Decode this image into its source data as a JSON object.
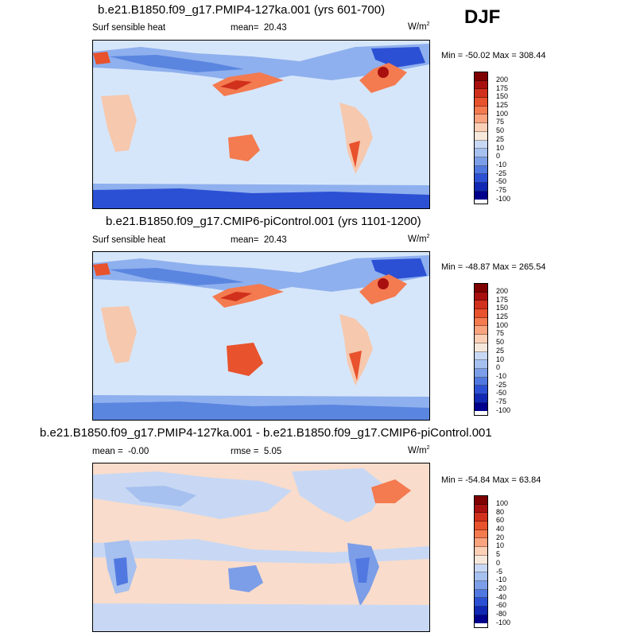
{
  "season": "DJF",
  "panels": [
    {
      "title": "b.e21.B1850.f09_g17.PMIP4-127ka.001 (yrs 601-700)",
      "variable": "Surf sensible heat",
      "mean_label": "mean=",
      "mean": "20.43",
      "units": "W/m",
      "units_exp": "2",
      "minmax": "Min = -50.02 Max = 308.44",
      "colorbar_levels": [
        "200",
        "175",
        "150",
        "125",
        "100",
        "75",
        "50",
        "25",
        "10",
        "0",
        "-10",
        "-25",
        "-50",
        "-75",
        "-100"
      ]
    },
    {
      "title": "b.e21.B1850.f09_g17.CMIP6-piControl.001 (yrs 1101-1200)",
      "variable": "Surf sensible heat",
      "mean_label": "mean=",
      "mean": "20.43",
      "units": "W/m",
      "units_exp": "2",
      "minmax": "Min = -48.87 Max = 265.54",
      "colorbar_levels": [
        "200",
        "175",
        "150",
        "125",
        "100",
        "75",
        "50",
        "25",
        "10",
        "0",
        "-10",
        "-25",
        "-50",
        "-75",
        "-100"
      ]
    },
    {
      "title": "b.e21.B1850.f09_g17.PMIP4-127ka.001 - b.e21.B1850.f09_g17.CMIP6-piControl.001",
      "mean_label": "mean =",
      "mean": "-0.00",
      "rmse_label": "rmse =",
      "rmse": "5.05",
      "units": "W/m",
      "units_exp": "2",
      "minmax": "Min = -54.84 Max =  63.84",
      "colorbar_levels": [
        "100",
        "80",
        "60",
        "40",
        "20",
        "10",
        "5",
        "0",
        "-5",
        "-10",
        "-20",
        "-40",
        "-60",
        "-80",
        "-100"
      ]
    }
  ],
  "colors": {
    "scale": [
      "#7f0000",
      "#a81010",
      "#d0301c",
      "#e8522c",
      "#f47a50",
      "#f9a47f",
      "#fcd0b6",
      "#f7e8dc",
      "#c8d8f4",
      "#a6c0ef",
      "#7c9ee8",
      "#5078e0",
      "#2c50d4",
      "#1028b4",
      "#00008c"
    ],
    "ocean_base": "#d6e6fa",
    "land_warm": "#f6c8ae",
    "cold_band": "#5a86e0"
  }
}
